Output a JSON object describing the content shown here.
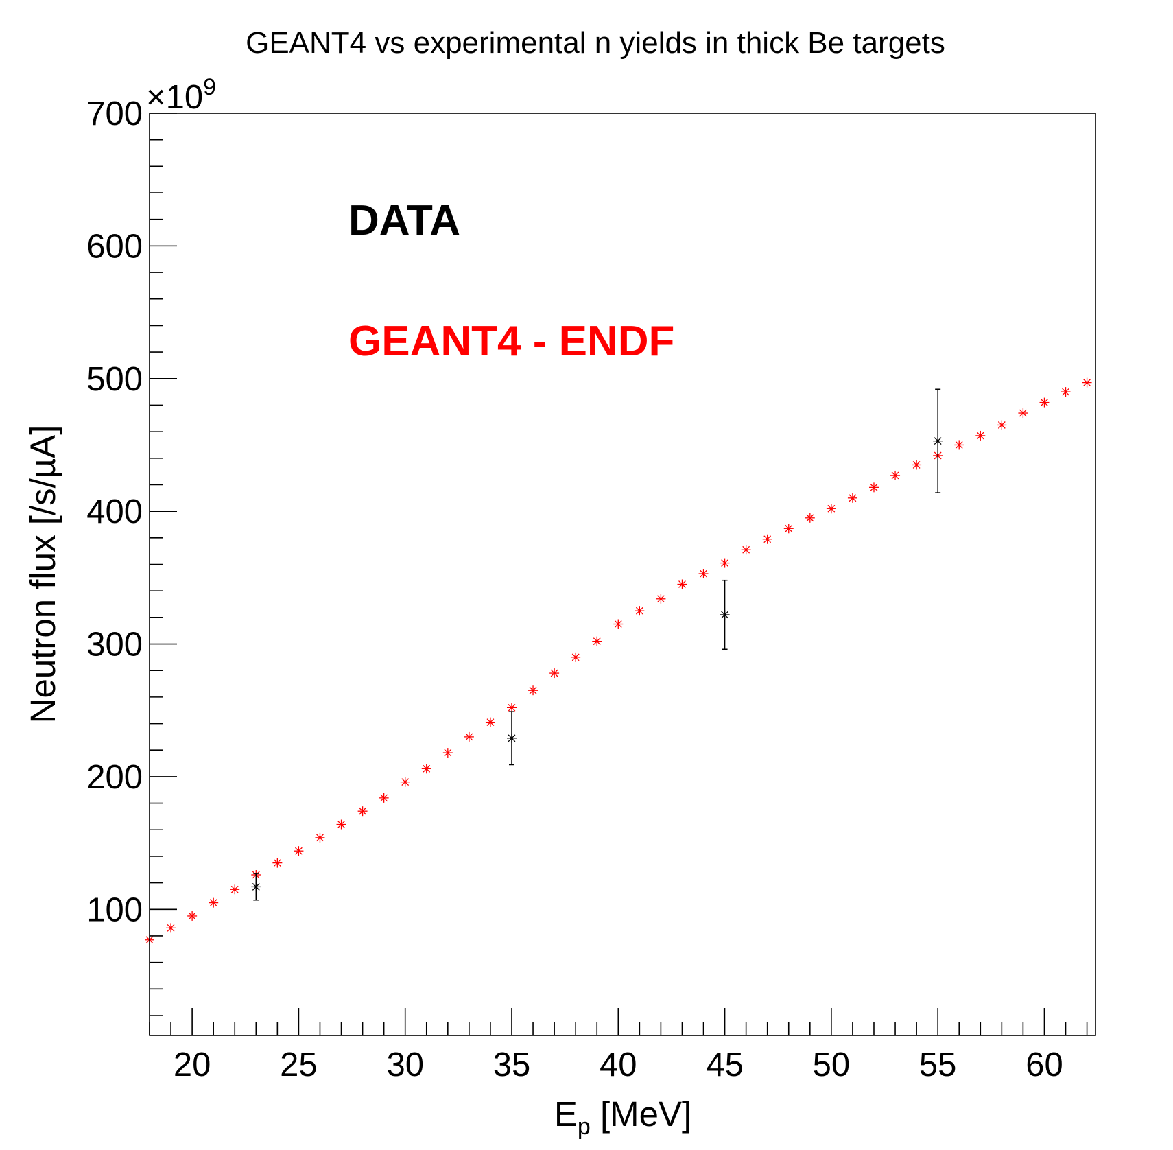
{
  "chart_data": {
    "type": "scatter",
    "title": "GEANT4 vs experimental n yields in thick Be targets",
    "xlabel_main": "E",
    "xlabel_sub": "p",
    "xlabel_rest": " [MeV]",
    "ylabel": "Neutron flux [/s/µA]",
    "y_exponent_label": "×10",
    "y_exponent_power": "9",
    "xlim": [
      18,
      62.4
    ],
    "ylim": [
      5,
      700
    ],
    "x_ticks": [
      20,
      25,
      30,
      35,
      40,
      45,
      50,
      55,
      60
    ],
    "y_ticks": [
      100,
      200,
      300,
      400,
      500,
      600,
      700
    ],
    "grid": false,
    "legend_entries": [
      {
        "text": "DATA",
        "color": "#000000"
      },
      {
        "text": "GEANT4 - ENDF",
        "color": "#ff0000"
      }
    ],
    "series": [
      {
        "name": "DATA",
        "color": "#000000",
        "marker": "asterisk",
        "x": [
          23,
          35,
          45,
          55
        ],
        "y": [
          117,
          229,
          322,
          453
        ],
        "y_err": [
          10,
          20,
          26,
          39
        ]
      },
      {
        "name": "GEANT4 - ENDF",
        "color": "#ff0000",
        "marker": "asterisk",
        "x": [
          18,
          19,
          20,
          21,
          22,
          23,
          24,
          25,
          26,
          27,
          28,
          29,
          30,
          31,
          32,
          33,
          34,
          35,
          36,
          37,
          38,
          39,
          40,
          41,
          42,
          43,
          44,
          45,
          46,
          47,
          48,
          49,
          50,
          51,
          52,
          53,
          54,
          55,
          56,
          57,
          58,
          59,
          60,
          61,
          62
        ],
        "y": [
          77,
          86,
          95,
          105,
          115,
          126,
          135,
          144,
          154,
          164,
          174,
          184,
          196,
          206,
          218,
          230,
          241,
          252,
          265,
          278,
          290,
          302,
          315,
          325,
          334,
          345,
          353,
          361,
          371,
          379,
          387,
          395,
          402,
          410,
          418,
          427,
          435,
          442,
          450,
          457,
          465,
          474,
          482,
          490,
          497
        ]
      }
    ]
  }
}
